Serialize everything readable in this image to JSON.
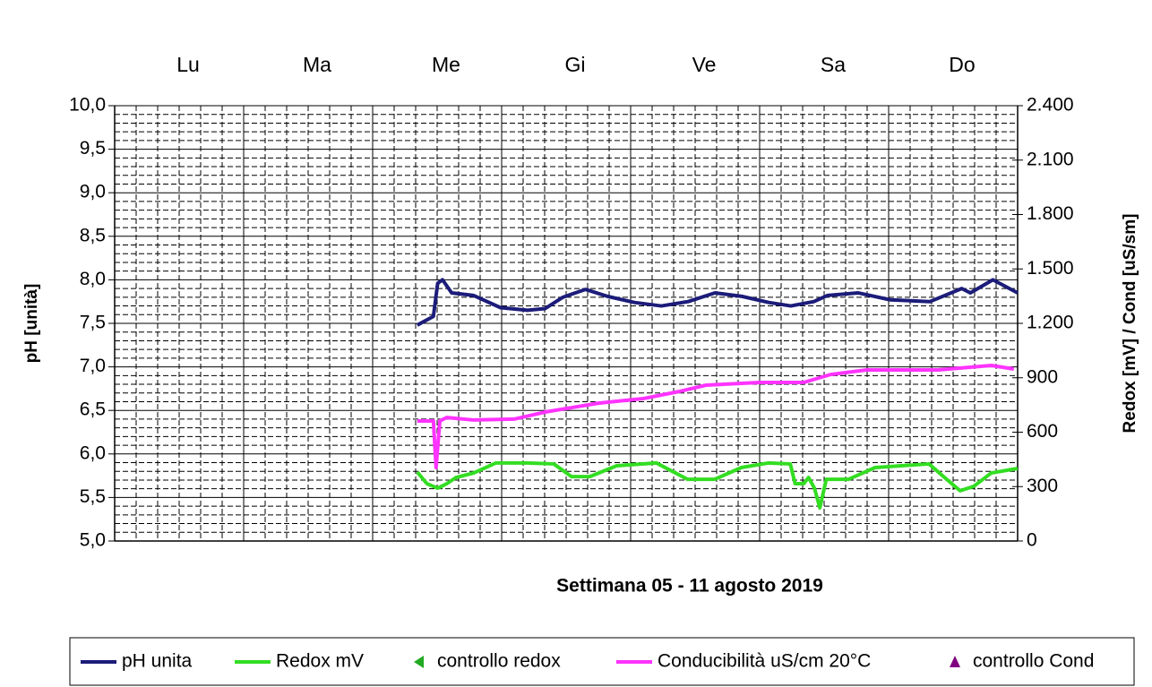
{
  "chart_data": {
    "type": "line",
    "xlabel": "Settimana 05 - 11  agosto 2019",
    "ylabel": "pH [unità]",
    "y2label": "Redox [mV] / Cond [uS/sm]",
    "categories": [
      "Lu",
      "Ma",
      "Me",
      "Gi",
      "Ve",
      "Sa",
      "Do"
    ],
    "xlim": [
      0,
      168
    ],
    "xticks": [
      0,
      24,
      48,
      72,
      96,
      120,
      144,
      168
    ],
    "ylim": [
      5,
      10
    ],
    "yticks": [
      {
        "value": 5,
        "label": "5,0"
      },
      {
        "value": 5.5,
        "label": "5,5"
      },
      {
        "value": 6,
        "label": "6,0"
      },
      {
        "value": 6.5,
        "label": "6,5"
      },
      {
        "value": 7,
        "label": "7,0"
      },
      {
        "value": 7.5,
        "label": "7,5"
      },
      {
        "value": 8,
        "label": "8,0"
      },
      {
        "value": 8.5,
        "label": "8,5"
      },
      {
        "value": 9,
        "label": "9,0"
      },
      {
        "value": 9.5,
        "label": "9,5"
      },
      {
        "value": 10,
        "label": "10,0"
      }
    ],
    "y2lim": [
      0,
      2400
    ],
    "y2ticks": [
      0,
      300,
      600,
      900,
      {
        "value": 1200,
        "label": "1.200"
      },
      {
        "value": 1500,
        "label": "1.500"
      },
      {
        "value": 1800,
        "label": "1.800"
      },
      {
        "value": 2100,
        "label": "2.100"
      },
      {
        "value": 2400,
        "label": "2.400"
      }
    ],
    "grid": true,
    "legend": "bottom",
    "series": [
      {
        "name": "pH unita",
        "color": "#1c1c7a",
        "marker": "line",
        "x": [
          56.3,
          59.3,
          60.1,
          61,
          62.7,
          66.8,
          71.8,
          76.8,
          80.1,
          83.4,
          87.6,
          91.7,
          96.7,
          101.7,
          106.7,
          111.7,
          116.7,
          121.7,
          125.8,
          130.1,
          132.6,
          138.3,
          144.3,
          151.7,
          157.6,
          159.2,
          163.4,
          168
        ],
        "values": [
          7.48,
          7.58,
          7.96,
          8.0,
          7.85,
          7.82,
          7.68,
          7.65,
          7.67,
          7.8,
          7.89,
          7.81,
          7.74,
          7.7,
          7.75,
          7.85,
          7.81,
          7.74,
          7.7,
          7.75,
          7.82,
          7.85,
          7.77,
          7.75,
          7.9,
          7.85,
          8.0,
          7.85
        ]
      },
      {
        "name": "Redox mV",
        "color": "#33dd22",
        "marker": "line",
        "axis": "y2",
        "x": [
          56.3,
          58.1,
          60.1,
          61.8,
          63.5,
          66.8,
          70.9,
          76.7,
          81.7,
          85,
          88.4,
          93.4,
          100.8,
          106.6,
          111.6,
          116.6,
          121.6,
          125.7,
          126.6,
          128.2,
          129.1,
          130.2,
          131.2,
          132.4,
          136.5,
          141.5,
          151.5,
          154.8,
          157.3,
          159.8,
          163.1,
          168
        ],
        "values": [
          380,
          316,
          291,
          316,
          350,
          375,
          430,
          430,
          425,
          355,
          355,
          415,
          430,
          340,
          340,
          405,
          430,
          425,
          316,
          316,
          350,
          291,
          183,
          340,
          340,
          405,
          425,
          340,
          277,
          301,
          375,
          400
        ]
      },
      {
        "name": "controllo redox",
        "color": "#22aa22",
        "marker": "triangle-left",
        "axis": "y2",
        "x": [],
        "values": []
      },
      {
        "name": "Conducibilità uS/cm 20°C",
        "color": "#ff33ff",
        "marker": "line",
        "axis": "y2",
        "x": [
          56.3,
          59.3,
          59.8,
          60.5,
          61.8,
          66.8,
          74.3,
          80.1,
          90,
          98.3,
          105,
          110,
          120,
          128.2,
          133.2,
          139.9,
          153.2,
          163.1,
          167.3
        ],
        "values": [
          662,
          662,
          405,
          662,
          681,
          667,
          672,
          711,
          760,
          785,
          824,
          859,
          874,
          874,
          918,
          943,
          943,
          968,
          948
        ]
      },
      {
        "name": "controllo Cond",
        "color": "#800080",
        "marker": "triangle-up",
        "axis": "y2",
        "x": [],
        "values": []
      }
    ]
  }
}
